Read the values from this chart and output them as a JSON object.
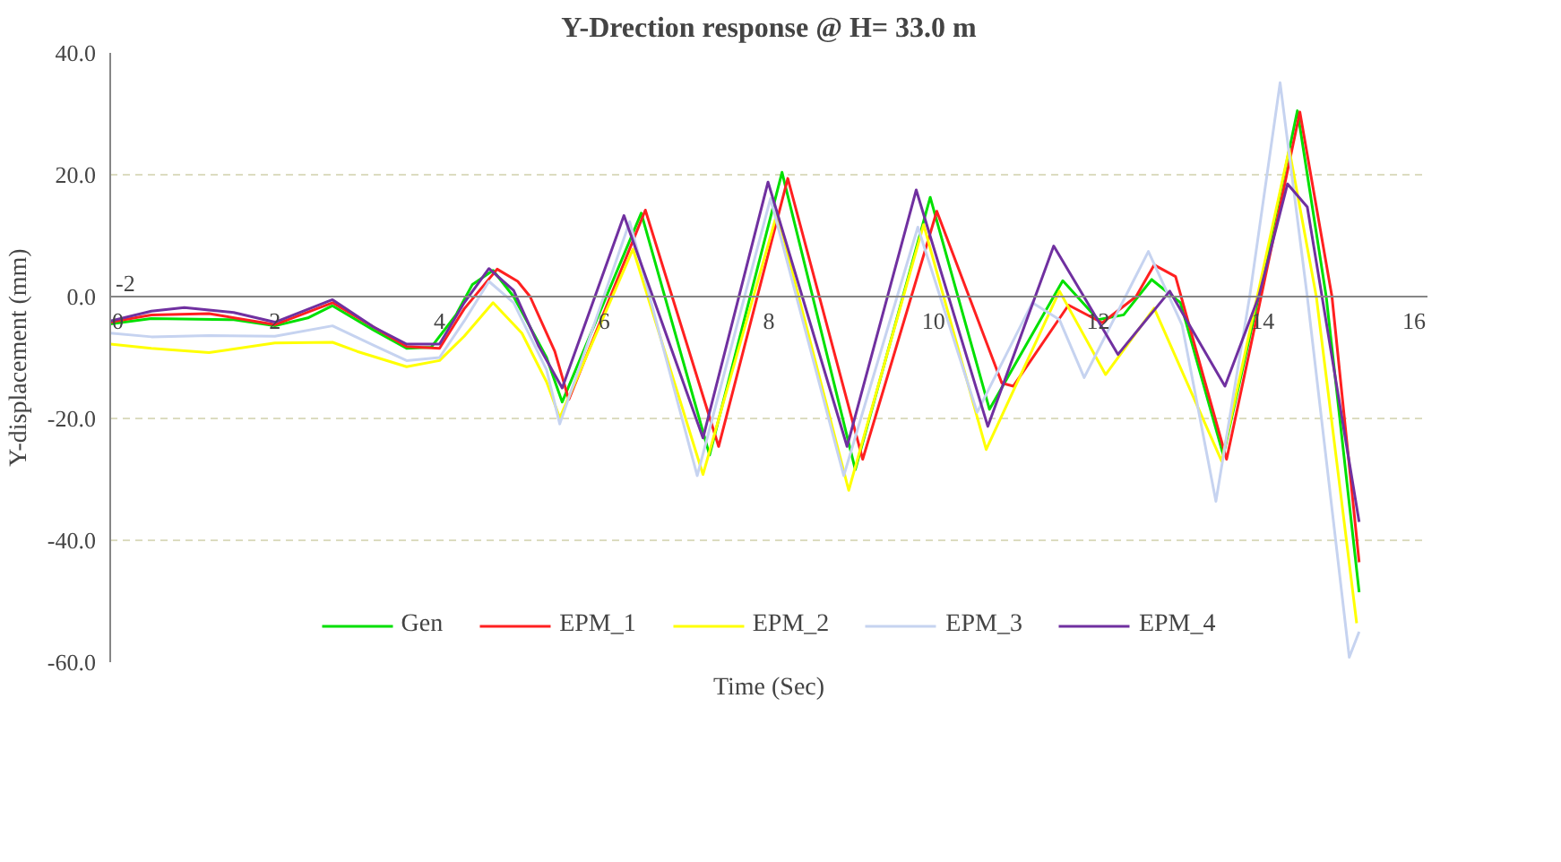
{
  "chart_data": {
    "type": "line",
    "title": "Y-Drection response @ H= 33.0 m",
    "xlabel": "Time (Sec)",
    "ylabel": "Y-displacement (mm)",
    "annotations": [
      "-2"
    ],
    "xlim": [
      0,
      16
    ],
    "xticks": [
      0,
      2,
      4,
      6,
      8,
      10,
      12,
      14,
      16
    ],
    "ylim": [
      -60,
      40
    ],
    "yticks": [
      {
        "value": -60,
        "label": "-60.0"
      },
      {
        "value": -40,
        "label": "-40.0"
      },
      {
        "value": -20,
        "label": "-20.0"
      },
      {
        "value": 0,
        "label": "0.0"
      },
      {
        "value": 20,
        "label": "20.0"
      },
      {
        "value": 40,
        "label": "40.0"
      }
    ],
    "grid": "y",
    "legend": "bottom",
    "marker": "none",
    "line_style": "solid",
    "series": [
      {
        "name": "Gen",
        "color": "#00e000",
        "x": [
          0,
          0.5,
          1.5,
          2,
          2.4,
          2.7,
          3.2,
          3.6,
          3.9,
          4.2,
          4.4,
          4.65,
          4.9,
          5.3,
          5.49,
          6.45,
          7.28,
          8.16,
          9.05,
          9.96,
          10.68,
          11.57,
          12.0,
          12.31,
          12.65,
          13.0,
          13.52,
          13.95,
          14.42,
          14.77,
          15.17
        ],
        "values": [
          -4.5,
          -3.6,
          -3.8,
          -4.8,
          -3.5,
          -1.5,
          -5.5,
          -8.5,
          -8.3,
          -3,
          2,
          4.3,
          0,
          -10,
          -17.3,
          13.7,
          -26,
          20.4,
          -28.4,
          16.3,
          -18.5,
          2.6,
          -3.8,
          -3,
          2.8,
          -1,
          -26,
          0,
          30.5,
          0,
          -48.5
        ]
      },
      {
        "name": "EPM_1",
        "color": "#ff2020",
        "x": [
          0,
          0.5,
          1.2,
          2,
          2.7,
          3.2,
          3.6,
          4,
          4.3,
          4.7,
          4.95,
          5.1,
          5.4,
          5.57,
          6.5,
          7.39,
          8.23,
          9.14,
          10.04,
          10.83,
          10.97,
          11.64,
          12.05,
          12.46,
          12.68,
          12.94,
          13.56,
          13.95,
          14.45,
          14.84,
          15.17
        ],
        "values": [
          -4.2,
          -3,
          -2.8,
          -4.6,
          -1,
          -5,
          -8.2,
          -8.5,
          -2,
          4.5,
          2.5,
          0,
          -9,
          -16.9,
          14.2,
          -24.6,
          19.4,
          -26.7,
          14,
          -14.2,
          -14.7,
          -1.4,
          -4.3,
          0,
          5.2,
          3.3,
          -26.7,
          -1.9,
          30.3,
          0,
          -43.6
        ]
      },
      {
        "name": "EPM_2",
        "color": "#ffff00",
        "x": [
          0,
          0.5,
          1.2,
          2,
          2.7,
          3,
          3.6,
          4,
          4.3,
          4.65,
          5,
          5.3,
          5.46,
          6.35,
          7.2,
          8.1,
          8.97,
          9.88,
          10.64,
          11.53,
          12.09,
          12.68,
          13.5,
          14.32,
          14.65,
          15.14
        ],
        "values": [
          -7.8,
          -8.5,
          -9.2,
          -7.6,
          -7.5,
          -9,
          -11.5,
          -10.5,
          -6.5,
          -1,
          -6,
          -14,
          -19.9,
          7.8,
          -29.2,
          13.7,
          -31.8,
          11.8,
          -25.1,
          0.9,
          -12.8,
          -1.9,
          -27,
          24.2,
          0,
          -53.6
        ]
      },
      {
        "name": "EPM_3",
        "color": "#c6d3f0",
        "x": [
          0,
          0.5,
          1.2,
          2,
          2.7,
          3.2,
          3.6,
          4,
          4.3,
          4.6,
          4.9,
          5.3,
          5.46,
          6.31,
          7.13,
          8.02,
          8.91,
          9.81,
          10.53,
          11.2,
          11.53,
          11.83,
          12.61,
          13.02,
          13.43,
          13.84,
          14.21,
          14.54,
          15.05,
          15.17
        ],
        "values": [
          -6,
          -6.6,
          -6.4,
          -6.5,
          -4.8,
          -8,
          -10.5,
          -10,
          -4,
          2.5,
          -1,
          -12,
          -20.9,
          12.3,
          -29.4,
          16.1,
          -29.4,
          11.4,
          -19,
          -1,
          -3.8,
          -13.3,
          7.4,
          -4.7,
          -33.6,
          0,
          35.1,
          0,
          -59.2,
          -55
        ]
      },
      {
        "name": "EPM_4",
        "color": "#7030a0",
        "x": [
          0,
          0.5,
          0.9,
          1.5,
          2,
          2.7,
          3.2,
          3.6,
          4,
          4.3,
          4.6,
          4.9,
          5.2,
          5.49,
          6.24,
          7.2,
          7.99,
          8.95,
          9.79,
          10.66,
          11.46,
          11.87,
          12.24,
          12.87,
          13.54,
          13.95,
          14.3,
          14.54,
          15.17
        ],
        "values": [
          -4,
          -2.4,
          -1.8,
          -2.6,
          -4.2,
          -0.5,
          -5,
          -7.8,
          -7.8,
          -1,
          4.6,
          1,
          -8,
          -15,
          13.3,
          -23.2,
          18.8,
          -24.6,
          17.5,
          -21.3,
          8.3,
          -1,
          -9.5,
          0.9,
          -14.7,
          0,
          18.5,
          14.7,
          -37
        ]
      }
    ]
  }
}
